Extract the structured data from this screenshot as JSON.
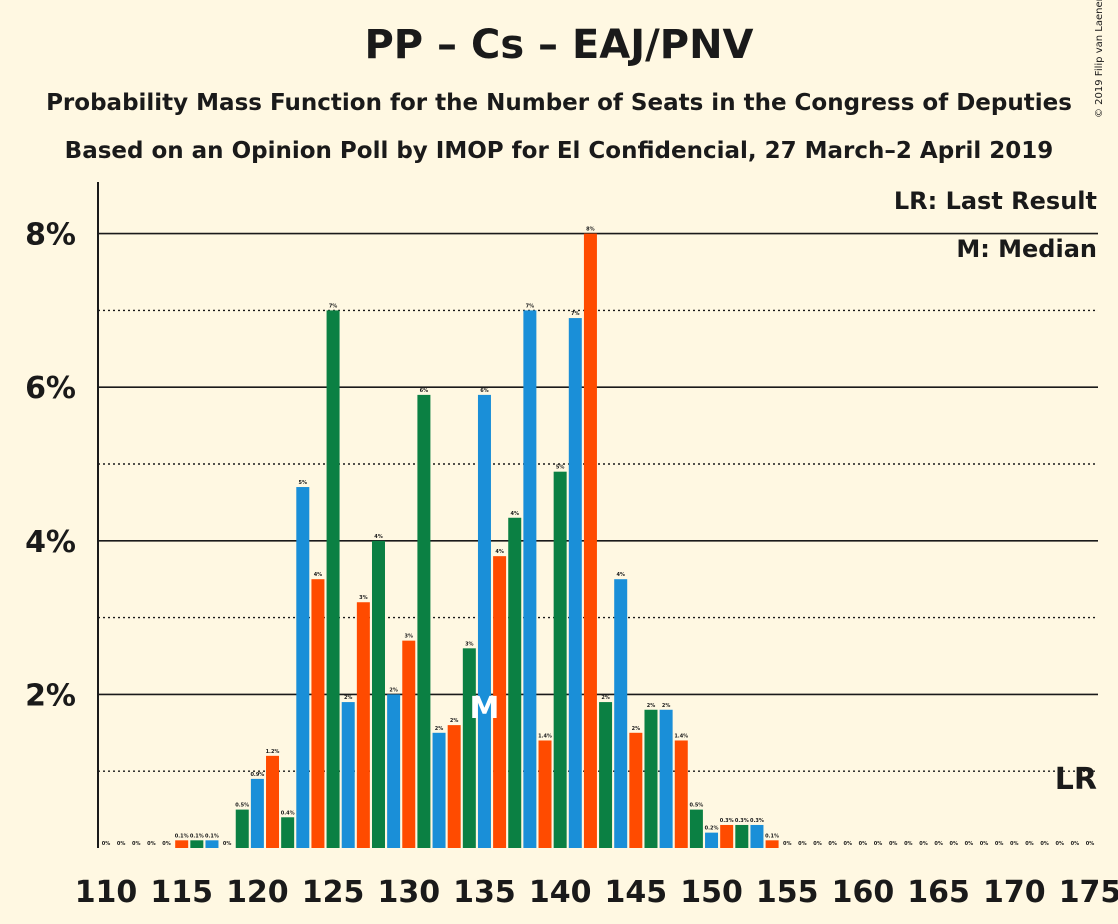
{
  "title": "PP – Cs – EAJ/PNV",
  "subtitle1": "Probability Mass Function for the Number of Seats in the Congress of Deputies",
  "subtitle2": "Based on an Opinion Poll by IMOP for El Confidencial, 27 March–2 April 2019",
  "copyright": "© 2019 Filip van Laenen",
  "legend": {
    "lr": "LR: Last Result",
    "median": "M: Median"
  },
  "markers": {
    "median_label": "M",
    "last_result_label": "LR"
  },
  "colors": {
    "background": "#fff8e2",
    "green": "#0b8043",
    "blue": "#1a8fd8",
    "orange": "#ff4b00"
  },
  "chart_data": {
    "type": "bar",
    "x": [
      110,
      111,
      112,
      113,
      114,
      115,
      116,
      117,
      118,
      119,
      120,
      121,
      122,
      123,
      124,
      125,
      126,
      127,
      128,
      129,
      130,
      131,
      132,
      133,
      134,
      135,
      136,
      137,
      138,
      139,
      140,
      141,
      142,
      143,
      144,
      145,
      146,
      147,
      148,
      149,
      150,
      151,
      152,
      153,
      154,
      155,
      156,
      157,
      158,
      159,
      160,
      161,
      162,
      163,
      164,
      165,
      166,
      167,
      168,
      169,
      170,
      171,
      172,
      173,
      174,
      175
    ],
    "values": [
      0,
      0,
      0,
      0,
      0,
      0.1,
      0.1,
      0.1,
      0,
      0.5,
      0.9,
      1.2,
      0.4,
      4.7,
      3.5,
      7,
      1.9,
      3.2,
      4,
      2,
      2.7,
      5.9,
      1.5,
      1.6,
      2.6,
      5.9,
      3.8,
      4.3,
      7,
      1.4,
      4.9,
      6.9,
      8,
      1.9,
      3.5,
      1.5,
      1.8,
      1.8,
      1.4,
      0.5,
      0.2,
      0.3,
      0.3,
      0.3,
      0.1,
      0,
      0,
      0,
      0,
      0,
      0,
      0,
      0,
      0,
      0,
      0,
      0,
      0,
      0,
      0,
      0,
      0,
      0,
      0,
      0,
      0
    ],
    "labels": [
      "0%",
      "0%",
      "0%",
      "0%",
      "0%",
      "0.1%",
      "0.1%",
      "0.1%",
      "0%",
      "0.5%",
      "0.9%",
      "1.2%",
      "0.4%",
      "5%",
      "4%",
      "7%",
      "2%",
      "3%",
      "4%",
      "2%",
      "3%",
      "6%",
      "2%",
      "2%",
      "3%",
      "6%",
      "4%",
      "4%",
      "7%",
      "1.4%",
      "5%",
      "7%",
      "8%",
      "2%",
      "4%",
      "2%",
      "2%",
      "2%",
      "1.4%",
      "0.5%",
      "0.2%",
      "0.3%",
      "0.3%",
      "0.3%",
      "0.1%",
      "0%",
      "0%",
      "0%",
      "0%",
      "0%",
      "0%",
      "0%",
      "0%",
      "0%",
      "0%",
      "0%",
      "0%",
      "0%",
      "0%",
      "0%",
      "0%",
      "0%",
      "0%",
      "0%",
      "0%",
      "0%"
    ],
    "x_ticks": [
      110,
      115,
      120,
      125,
      130,
      135,
      140,
      145,
      150,
      155,
      160,
      165,
      170,
      175
    ],
    "y_ticks": [
      "2%",
      "4%",
      "6%",
      "8%"
    ],
    "ylim": [
      0,
      8.7
    ],
    "median": 135,
    "last_result": 175,
    "xlabel": "",
    "ylabel": ""
  }
}
